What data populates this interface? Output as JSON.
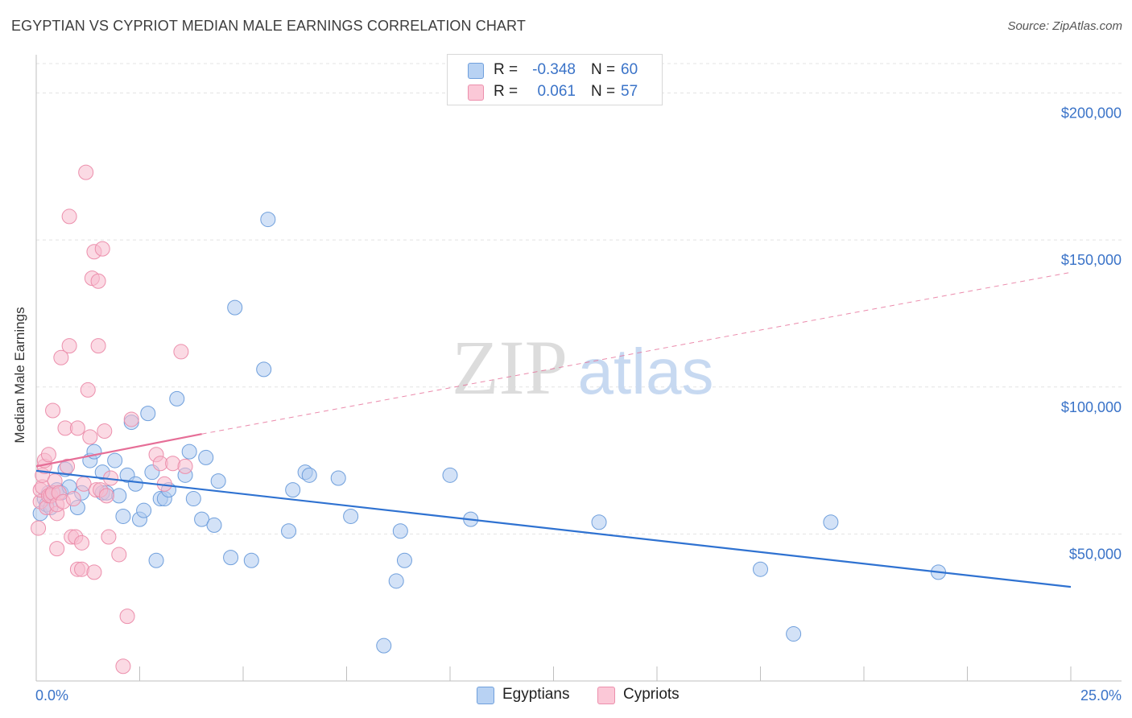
{
  "header": {
    "title": "EGYPTIAN VS CYPRIOT MEDIAN MALE EARNINGS CORRELATION CHART",
    "source": "Source: ZipAtlas.com"
  },
  "watermark": {
    "zip": "ZIP",
    "atlas": "atlas"
  },
  "legend": {
    "rows": [
      {
        "r_label": "R =",
        "r_value": "-0.348",
        "n_label": "N =",
        "n_value": "60"
      },
      {
        "r_label": "R =",
        "r_value": "0.061",
        "n_label": "N =",
        "n_value": "57"
      }
    ]
  },
  "bottom_legend": {
    "egyptians": "Egyptians",
    "cypriots": "Cypriots"
  },
  "colors": {
    "egyptian_fill": "#aecbf0",
    "egyptian_stroke": "#6f9fdc",
    "egyptian_line": "#2f72d1",
    "cypriot_fill": "#f8bccd",
    "cypriot_stroke": "#ec8fac",
    "cypriot_line": "#e66e97",
    "tick_text": "#3a73c8",
    "grid": "#e3e3e3"
  },
  "chart_data": {
    "type": "scatter",
    "title": "EGYPTIAN VS CYPRIOT MEDIAN MALE EARNINGS CORRELATION CHART",
    "xlabel": "",
    "ylabel": "Median Male Earnings",
    "xlim": [
      0,
      25
    ],
    "ylim": [
      0,
      210000
    ],
    "x_tick_labels": [
      "0.0%",
      "25.0%"
    ],
    "y_ticks": [
      50000,
      100000,
      150000,
      200000
    ],
    "y_tick_labels": [
      "$50,000",
      "$100,000",
      "$150,000",
      "$200,000"
    ],
    "series": [
      {
        "name": "Egyptians",
        "r": -0.348,
        "n": 60,
        "trend": {
          "x": [
            0,
            25
          ],
          "y": [
            71500,
            32000
          ],
          "style": "solid"
        },
        "points": [
          [
            0.1,
            57000
          ],
          [
            0.2,
            62000
          ],
          [
            0.25,
            60000
          ],
          [
            0.3,
            64000
          ],
          [
            0.35,
            59000
          ],
          [
            0.5,
            65000
          ],
          [
            0.6,
            64000
          ],
          [
            0.7,
            72000
          ],
          [
            0.8,
            66000
          ],
          [
            1.0,
            59000
          ],
          [
            1.1,
            64000
          ],
          [
            1.3,
            75000
          ],
          [
            1.4,
            78000
          ],
          [
            1.6,
            64000
          ],
          [
            1.6,
            71000
          ],
          [
            1.7,
            64000
          ],
          [
            1.9,
            75000
          ],
          [
            2.0,
            63000
          ],
          [
            2.1,
            56000
          ],
          [
            2.2,
            70000
          ],
          [
            2.3,
            88000
          ],
          [
            2.4,
            67000
          ],
          [
            2.5,
            55000
          ],
          [
            2.6,
            58000
          ],
          [
            2.7,
            91000
          ],
          [
            2.8,
            71000
          ],
          [
            2.9,
            41000
          ],
          [
            3.0,
            62000
          ],
          [
            3.1,
            62000
          ],
          [
            3.2,
            65000
          ],
          [
            3.4,
            96000
          ],
          [
            3.6,
            70000
          ],
          [
            3.7,
            78000
          ],
          [
            3.8,
            62000
          ],
          [
            4.0,
            55000
          ],
          [
            4.1,
            76000
          ],
          [
            4.3,
            53000
          ],
          [
            4.4,
            68000
          ],
          [
            4.7,
            42000
          ],
          [
            4.8,
            127000
          ],
          [
            5.2,
            41000
          ],
          [
            5.5,
            106000
          ],
          [
            5.6,
            157000
          ],
          [
            6.1,
            51000
          ],
          [
            6.2,
            65000
          ],
          [
            6.5,
            71000
          ],
          [
            6.6,
            70000
          ],
          [
            7.3,
            69000
          ],
          [
            7.6,
            56000
          ],
          [
            8.4,
            12000
          ],
          [
            8.7,
            34000
          ],
          [
            8.8,
            51000
          ],
          [
            8.9,
            41000
          ],
          [
            10.0,
            70000
          ],
          [
            10.5,
            55000
          ],
          [
            13.6,
            54000
          ],
          [
            17.5,
            38000
          ],
          [
            18.3,
            16000
          ],
          [
            19.2,
            54000
          ],
          [
            21.8,
            37000
          ]
        ]
      },
      {
        "name": "Cypriots",
        "r": 0.061,
        "n": 57,
        "trend": {
          "x": [
            0,
            4
          ],
          "y": [
            73000,
            84000
          ],
          "style": "solid",
          "extended": {
            "x": [
              4,
              25
            ],
            "y": [
              84000,
              139000
            ],
            "style": "dashed"
          }
        },
        "points": [
          [
            0.05,
            52000
          ],
          [
            0.1,
            61000
          ],
          [
            0.1,
            65000
          ],
          [
            0.15,
            66000
          ],
          [
            0.15,
            70000
          ],
          [
            0.2,
            73000
          ],
          [
            0.2,
            75000
          ],
          [
            0.25,
            59000
          ],
          [
            0.3,
            63000
          ],
          [
            0.3,
            77000
          ],
          [
            0.35,
            63000
          ],
          [
            0.4,
            64000
          ],
          [
            0.4,
            92000
          ],
          [
            0.45,
            68000
          ],
          [
            0.5,
            45000
          ],
          [
            0.5,
            57000
          ],
          [
            0.5,
            60000
          ],
          [
            0.55,
            64000
          ],
          [
            0.6,
            110000
          ],
          [
            0.65,
            61000
          ],
          [
            0.7,
            86000
          ],
          [
            0.75,
            73000
          ],
          [
            0.8,
            114000
          ],
          [
            0.8,
            158000
          ],
          [
            0.85,
            49000
          ],
          [
            0.9,
            62000
          ],
          [
            0.95,
            49000
          ],
          [
            1.0,
            38000
          ],
          [
            1.0,
            86000
          ],
          [
            1.1,
            38000
          ],
          [
            1.1,
            47000
          ],
          [
            1.15,
            67000
          ],
          [
            1.2,
            173000
          ],
          [
            1.25,
            99000
          ],
          [
            1.3,
            83000
          ],
          [
            1.35,
            137000
          ],
          [
            1.4,
            146000
          ],
          [
            1.4,
            37000
          ],
          [
            1.45,
            65000
          ],
          [
            1.5,
            136000
          ],
          [
            1.5,
            114000
          ],
          [
            1.55,
            65000
          ],
          [
            1.6,
            147000
          ],
          [
            1.65,
            85000
          ],
          [
            1.7,
            63000
          ],
          [
            1.75,
            49000
          ],
          [
            1.8,
            69000
          ],
          [
            2.0,
            43000
          ],
          [
            2.1,
            5000
          ],
          [
            2.2,
            22000
          ],
          [
            2.3,
            89000
          ],
          [
            2.9,
            77000
          ],
          [
            3.0,
            74000
          ],
          [
            3.1,
            67000
          ],
          [
            3.3,
            74000
          ],
          [
            3.5,
            112000
          ],
          [
            3.6,
            73000
          ]
        ]
      }
    ]
  }
}
